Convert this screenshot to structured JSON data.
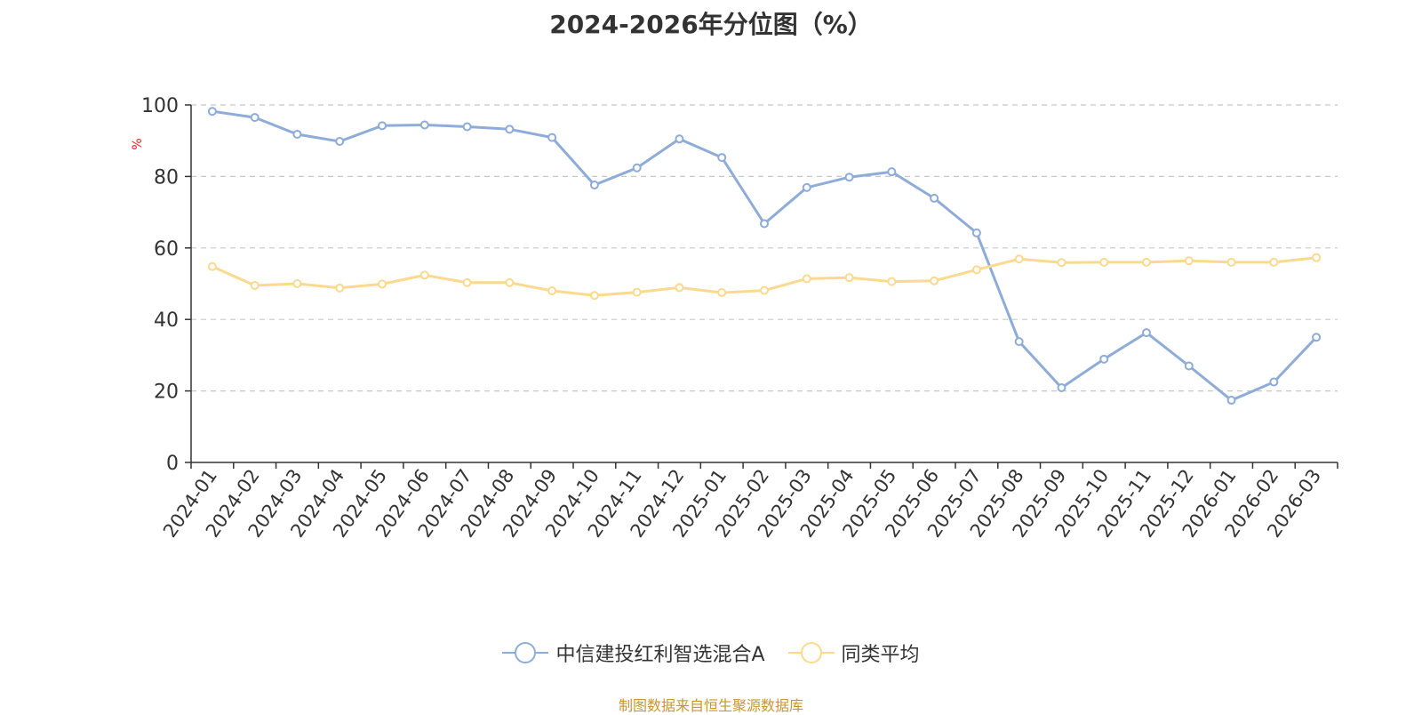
{
  "chart_data": {
    "type": "line",
    "title": "2024-2026年分位图（%）",
    "ylabel": "%",
    "xlabel": "",
    "ylim": [
      0,
      100
    ],
    "yticks": [
      0,
      20,
      40,
      60,
      80,
      100
    ],
    "grid": true,
    "legend_position": "bottom",
    "categories": [
      "2024-01",
      "2024-02",
      "2024-03",
      "2024-04",
      "2024-05",
      "2024-06",
      "2024-07",
      "2024-08",
      "2024-09",
      "2024-10",
      "2024-11",
      "2024-12",
      "2025-01",
      "2025-02",
      "2025-03",
      "2025-04",
      "2025-05",
      "2025-06",
      "2025-07",
      "2025-08",
      "2025-09",
      "2025-10",
      "2025-11",
      "2025-12",
      "2026-01",
      "2026-02",
      "2026-03"
    ],
    "series": [
      {
        "name": "中信建投红利智选混合A",
        "color": "#8eacd8",
        "values": [
          98.2,
          96.5,
          91.8,
          89.8,
          94.2,
          94.4,
          93.9,
          93.2,
          90.9,
          77.6,
          82.4,
          90.5,
          85.3,
          66.8,
          76.9,
          79.8,
          81.3,
          73.9,
          64.2,
          33.8,
          20.9,
          28.9,
          36.3,
          27.0,
          17.4,
          22.5,
          35.0
        ]
      },
      {
        "name": "同类平均",
        "color": "#fbd98e",
        "values": [
          54.8,
          49.5,
          50.0,
          48.8,
          49.9,
          52.4,
          50.3,
          50.3,
          48.0,
          46.7,
          47.6,
          48.9,
          47.5,
          48.1,
          51.4,
          51.7,
          50.6,
          50.8,
          53.9,
          56.9,
          55.9,
          56.0,
          56.0,
          56.4,
          56.0,
          56.0,
          57.3
        ]
      }
    ]
  },
  "footer": {
    "source": "制图数据来自恒生聚源数据库"
  }
}
